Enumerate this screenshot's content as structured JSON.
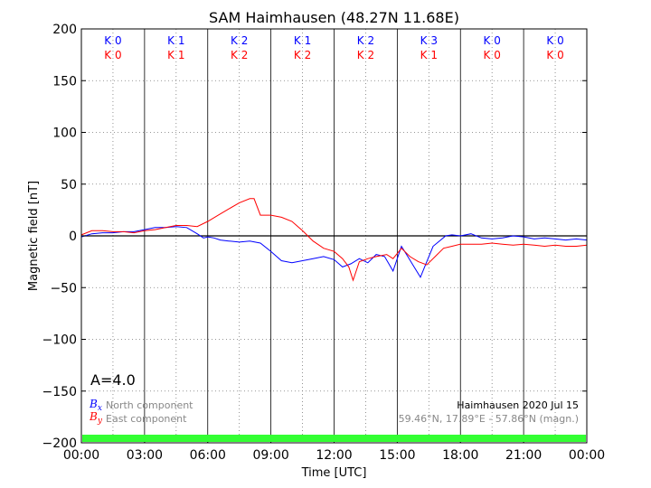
{
  "chart_data": {
    "type": "line",
    "title": "SAM Haimhausen (48.27N 11.68E)",
    "xlabel": "Time [UTC]",
    "ylabel": "Magnetic field [nT]",
    "xlim": [
      0,
      24
    ],
    "ylim": [
      -200,
      200
    ],
    "x_tick_labels": [
      "00:00",
      "03:00",
      "06:00",
      "09:00",
      "12:00",
      "15:00",
      "18:00",
      "21:00",
      "00:00"
    ],
    "y_tick_labels": [
      "200",
      "150",
      "100",
      "50",
      "0",
      "−50",
      "−100",
      "−150",
      "−200"
    ],
    "grid": true,
    "a_index_label": "A=4.0",
    "station_label": "Haimhausen 2020 Jul 15",
    "coord_label": "59.46°N, 17.89°E - 57.86°N (magn.)",
    "legend_placement": "lower-left",
    "k_indices": {
      "bx": [
        "K 0",
        "K 1",
        "K 2",
        "K 1",
        "K 2",
        "K 3",
        "K 0",
        "K 0"
      ],
      "by": [
        "K 0",
        "K 1",
        "K 2",
        "K 2",
        "K 2",
        "K 1",
        "K 0",
        "K 0"
      ]
    },
    "series": [
      {
        "name": "North component",
        "symbol": "Bx",
        "color": "#0000ff",
        "x": [
          0,
          0.5,
          1,
          1.5,
          2,
          2.5,
          3,
          3.5,
          4,
          4.5,
          5,
          5.5,
          5.8,
          6,
          6.3,
          6.6,
          7,
          7.5,
          8,
          8.5,
          9,
          9.5,
          10,
          10.5,
          11,
          11.5,
          12,
          12.4,
          12.8,
          13.2,
          13.6,
          14,
          14.4,
          14.8,
          15.2,
          15.5,
          15.8,
          16.1,
          16.4,
          16.7,
          17,
          17.3,
          17.6,
          18,
          18.5,
          19,
          19.5,
          20,
          20.5,
          21,
          21.5,
          22,
          22.5,
          23,
          23.5,
          24
        ],
        "y": [
          -1,
          2,
          3,
          3,
          4,
          4,
          6,
          8,
          8,
          9,
          8,
          2,
          -2,
          -1,
          -2,
          -4,
          -5,
          -6,
          -5,
          -7,
          -15,
          -24,
          -26,
          -24,
          -22,
          -20,
          -23,
          -30,
          -27,
          -22,
          -26,
          -18,
          -20,
          -34,
          -10,
          -20,
          -30,
          -40,
          -25,
          -10,
          -5,
          0,
          1,
          0,
          2,
          -2,
          -3,
          -2,
          0,
          -1,
          -3,
          -2,
          -3,
          -4,
          -3,
          -4
        ]
      },
      {
        "name": "East component",
        "symbol": "By",
        "color": "#ff0000",
        "x": [
          0,
          0.5,
          1,
          1.5,
          2,
          2.5,
          3,
          3.5,
          4,
          4.5,
          5,
          5.5,
          6,
          6.5,
          7,
          7.5,
          8,
          8.2,
          8.5,
          9,
          9.5,
          10,
          10.5,
          11,
          11.5,
          12,
          12.4,
          12.7,
          12.9,
          13.2,
          13.6,
          14,
          14.5,
          14.8,
          15.2,
          15.6,
          16,
          16.4,
          16.8,
          17.2,
          17.6,
          18,
          18.5,
          19,
          19.5,
          20,
          20.5,
          21,
          21.5,
          22,
          22.5,
          23,
          23.5,
          24
        ],
        "y": [
          1,
          5,
          5,
          4,
          4,
          3,
          5,
          6,
          8,
          10,
          10,
          9,
          14,
          20,
          26,
          32,
          36,
          36,
          20,
          20,
          18,
          14,
          5,
          -5,
          -12,
          -15,
          -22,
          -30,
          -43,
          -25,
          -22,
          -20,
          -18,
          -22,
          -12,
          -20,
          -25,
          -28,
          -20,
          -12,
          -10,
          -8,
          -8,
          -8,
          -7,
          -8,
          -9,
          -8,
          -9,
          -10,
          -9,
          -10,
          -10,
          -9
        ]
      }
    ]
  }
}
